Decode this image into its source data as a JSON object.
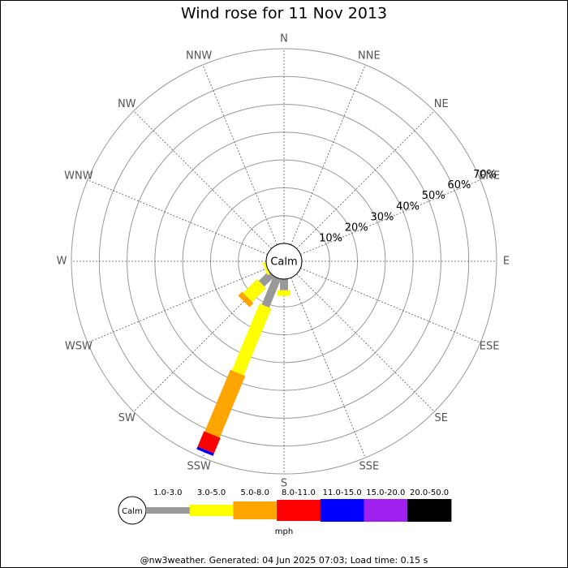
{
  "chart_data": {
    "type": "windrose",
    "title": "Wind rose for 11 Nov 2013",
    "directions": [
      "N",
      "NNE",
      "NE",
      "ENE",
      "E",
      "ESE",
      "SE",
      "SSE",
      "S",
      "SSW",
      "SW",
      "WSW",
      "W",
      "WNW",
      "NW",
      "NNW"
    ],
    "calm_label": "Calm",
    "unit_label": "mph",
    "rlim": [
      0,
      70
    ],
    "rticks": [
      {
        "value": 10,
        "label": "10%"
      },
      {
        "value": 20,
        "label": "20%"
      },
      {
        "value": 30,
        "label": "30%"
      },
      {
        "value": 40,
        "label": "40%"
      },
      {
        "value": 50,
        "label": "50%"
      },
      {
        "value": 60,
        "label": "60%"
      },
      {
        "value": 70,
        "label": "70%"
      }
    ],
    "series": [
      {
        "name": "1.0-3.0",
        "color": "#999999",
        "values": [
          0,
          0,
          0,
          0,
          0,
          0,
          0,
          0,
          4,
          11,
          5,
          0,
          0,
          0,
          0,
          0
        ]
      },
      {
        "name": "3.0-5.0",
        "color": "#ffff00",
        "values": [
          0,
          0,
          0,
          0,
          0,
          0,
          0,
          0,
          2,
          26,
          7,
          1,
          0,
          0,
          0,
          0
        ]
      },
      {
        "name": "5.0-8.0",
        "color": "#ffa500",
        "values": [
          0,
          0,
          0,
          0,
          0,
          0,
          0,
          0,
          0,
          24,
          2,
          0,
          0,
          0,
          0,
          0
        ]
      },
      {
        "name": "8.0-11.0",
        "color": "#ff0000",
        "values": [
          0,
          0,
          0,
          0,
          0,
          0,
          0,
          0,
          0,
          6,
          0,
          0,
          0,
          0,
          0,
          0
        ]
      },
      {
        "name": "11.0-15.0",
        "color": "#0000ff",
        "values": [
          0,
          0,
          0,
          0,
          0,
          0,
          0,
          0,
          0,
          1,
          0,
          0,
          0,
          0,
          0,
          0
        ]
      },
      {
        "name": "15.0-20.0",
        "color": "#a020f0",
        "values": [
          0,
          0,
          0,
          0,
          0,
          0,
          0,
          0,
          0,
          0,
          0,
          0,
          0,
          0,
          0,
          0
        ]
      },
      {
        "name": "20.0-50.0",
        "color": "#000000",
        "values": [
          0,
          0,
          0,
          0,
          0,
          0,
          0,
          0,
          0,
          0,
          0,
          0,
          0,
          0,
          0,
          0
        ]
      }
    ],
    "footer": "@nw3weather. Generated: 04 Jun 2025 07:03; Load time: 0.15 s"
  }
}
